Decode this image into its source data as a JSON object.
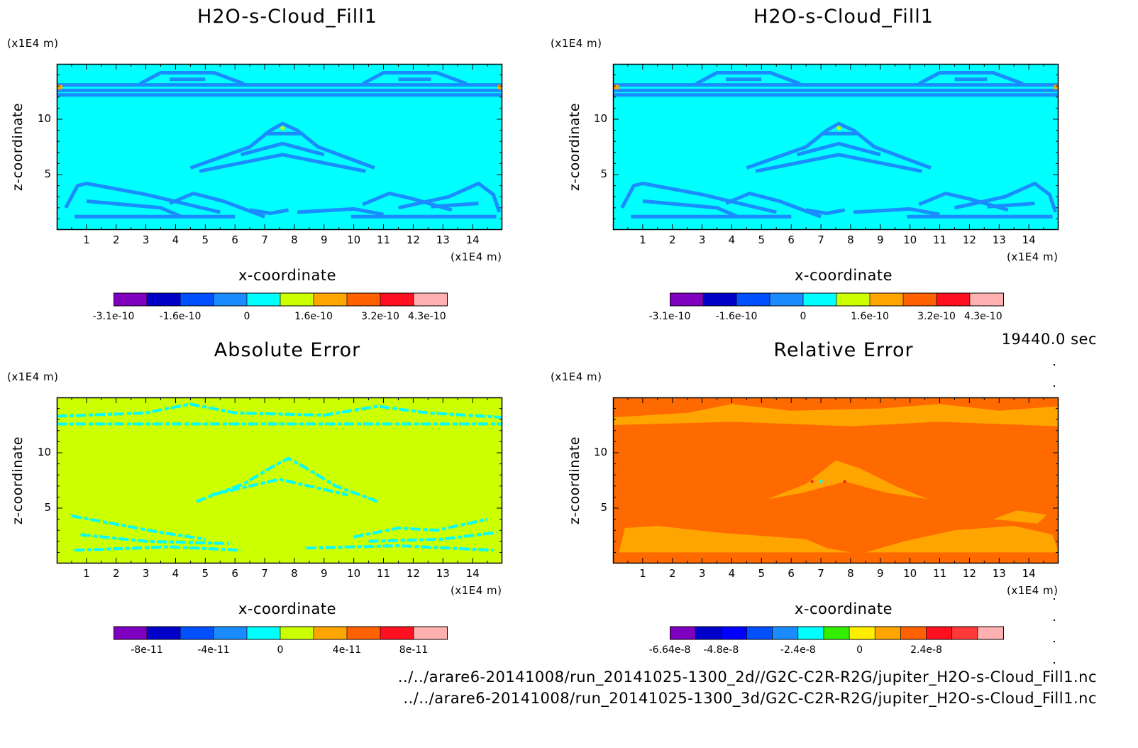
{
  "timestamp": "19440.0 sec",
  "footer": {
    "file_2d": "../../arare6-20141008/run_20141025-1300_2d//G2C-C2R-R2G/jupiter_H2O-s-Cloud_Fill1.nc",
    "file_3d": "../../arare6-20141008/run_20141025-1300_3d/G2C-C2R-R2G/jupiter_H2O-s-Cloud_Fill1.nc"
  },
  "chart_data": [
    {
      "type": "heatmap",
      "title": "H2O-s-Cloud_Fill1",
      "xlabel": "x-coordinate",
      "ylabel": "z-coordinate",
      "x_unit": "(x1E4 m)",
      "y_unit": "(x1E4 m)",
      "xlim": [
        0,
        15
      ],
      "ylim": [
        0,
        15
      ],
      "xticks": [
        "1",
        "2",
        "3",
        "4",
        "5",
        "6",
        "7",
        "8",
        "9",
        "10",
        "11",
        "12",
        "13",
        "14"
      ],
      "yticks": [
        "5",
        "10"
      ],
      "background": "#00ffff",
      "pattern": "cloud",
      "pattern_color": "#1a8cff",
      "colorbar": {
        "colors": [
          "#8000c0",
          "#0000c8",
          "#0050ff",
          "#1a8cff",
          "#00ffff",
          "#ccff00",
          "#ffa500",
          "#ff6000",
          "#ff1020",
          "#ffb0b0"
        ],
        "labels": [
          "-3.1e-10",
          "-1.6e-10",
          "0",
          "1.6e-10",
          "3.2e-10",
          "4.3e-10"
        ],
        "label_positions": [
          0,
          2,
          4,
          6,
          8,
          9.4
        ]
      }
    },
    {
      "type": "heatmap",
      "title": "H2O-s-Cloud_Fill1",
      "xlabel": "x-coordinate",
      "ylabel": "z-coordinate",
      "x_unit": "(x1E4 m)",
      "y_unit": "(x1E4 m)",
      "xlim": [
        0,
        15
      ],
      "ylim": [
        0,
        15
      ],
      "xticks": [
        "1",
        "2",
        "3",
        "4",
        "5",
        "6",
        "7",
        "8",
        "9",
        "10",
        "11",
        "12",
        "13",
        "14"
      ],
      "yticks": [
        "5",
        "10"
      ],
      "background": "#00ffff",
      "pattern": "cloud",
      "pattern_color": "#1a8cff",
      "colorbar": {
        "colors": [
          "#8000c0",
          "#0000c8",
          "#0050ff",
          "#1a8cff",
          "#00ffff",
          "#ccff00",
          "#ffa500",
          "#ff6000",
          "#ff1020",
          "#ffb0b0"
        ],
        "labels": [
          "-3.1e-10",
          "-1.6e-10",
          "0",
          "1.6e-10",
          "3.2e-10",
          "4.3e-10"
        ],
        "label_positions": [
          0,
          2,
          4,
          6,
          8,
          9.4
        ]
      }
    },
    {
      "type": "heatmap",
      "title": "Absolute Error",
      "xlabel": "x-coordinate",
      "ylabel": "z-coordinate",
      "x_unit": "(x1E4 m)",
      "y_unit": "(x1E4 m)",
      "xlim": [
        0,
        15
      ],
      "ylim": [
        0,
        15
      ],
      "xticks": [
        "1",
        "2",
        "3",
        "4",
        "5",
        "6",
        "7",
        "8",
        "9",
        "10",
        "11",
        "12",
        "13",
        "14"
      ],
      "yticks": [
        "5",
        "10"
      ],
      "background": "#ccff00",
      "pattern": "abs",
      "pattern_color": "#00ffff",
      "colorbar": {
        "colors": [
          "#8000c0",
          "#0000c8",
          "#0050ff",
          "#1a8cff",
          "#00ffff",
          "#ccff00",
          "#ffa500",
          "#ff6000",
          "#ff1020",
          "#ffb0b0"
        ],
        "labels": [
          "-8e-11",
          "-4e-11",
          "0",
          "4e-11",
          "8e-11"
        ],
        "label_positions": [
          1,
          3,
          5,
          7,
          9
        ]
      }
    },
    {
      "type": "heatmap",
      "title": "Relative Error",
      "xlabel": "x-coordinate",
      "ylabel": "z-coordinate",
      "x_unit": "(x1E4 m)",
      "y_unit": "(x1E4 m)",
      "xlim": [
        0,
        15
      ],
      "ylim": [
        0,
        15
      ],
      "xticks": [
        "1",
        "2",
        "3",
        "4",
        "5",
        "6",
        "7",
        "8",
        "9",
        "10",
        "11",
        "12",
        "13",
        "14"
      ],
      "yticks": [
        "5",
        "10"
      ],
      "background": "#ff6a00",
      "pattern": "rel",
      "pattern_color": "#ffa500",
      "colorbar": {
        "colors": [
          "#8000c0",
          "#0000c8",
          "#0000ff",
          "#0050ff",
          "#1a8cff",
          "#00ffff",
          "#33ee00",
          "#ffee00",
          "#ffa500",
          "#ff6000",
          "#ff1020",
          "#ff3838",
          "#ffb0b0"
        ],
        "labels": [
          "-6.64e-8",
          "-4.8e-8",
          "-2.4e-8",
          "0",
          "2.4e-8"
        ],
        "label_positions": [
          0,
          2,
          5,
          7.4,
          10
        ]
      }
    }
  ]
}
